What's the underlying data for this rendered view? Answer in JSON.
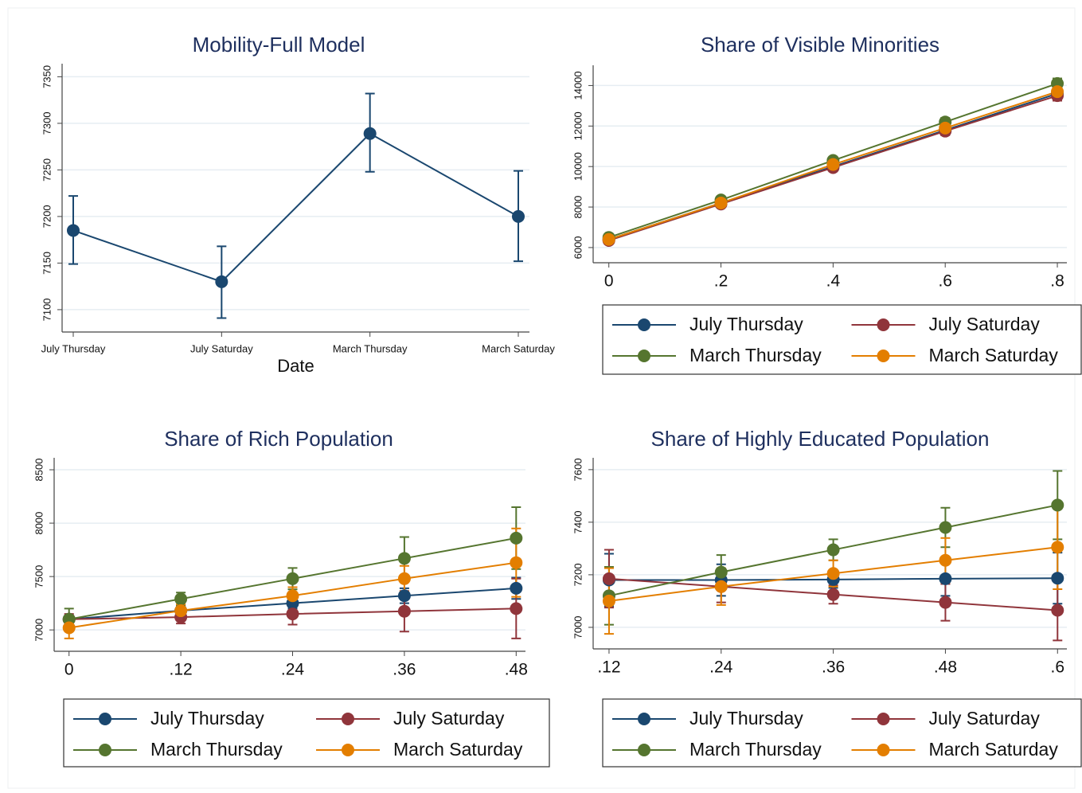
{
  "chart_data": [
    {
      "type": "line",
      "title": "Mobility-Full Model",
      "xlabel": "Date",
      "categories": [
        "July Thursday",
        "July Saturday",
        "March Thursday",
        "March Saturday"
      ],
      "ylim": [
        7076,
        7364
      ],
      "yticks": [
        7100,
        7150,
        7200,
        7250,
        7300,
        7350
      ],
      "grid": true,
      "series": [
        {
          "color": "#1a476f",
          "values": [
            7185,
            7130,
            7289,
            7200
          ],
          "ci_low": [
            7149,
            7091,
            7248,
            7152
          ],
          "ci_high": [
            7222,
            7168,
            7332,
            7249
          ]
        }
      ]
    },
    {
      "type": "line",
      "title": "Share of Visible Minorities",
      "x": [
        0,
        0.2,
        0.4,
        0.6,
        0.8
      ],
      "xlim": [
        -0.028,
        0.817
      ],
      "xticks": [
        0,
        {
          "value": 0.2,
          "label": ".2"
        },
        {
          "value": 0.4,
          "label": ".4"
        },
        {
          "value": 0.6,
          "label": ".6"
        },
        {
          "value": 0.8,
          "label": ".8"
        }
      ],
      "ylim": [
        5250,
        15000
      ],
      "yticks": [
        6000,
        8000,
        10000,
        12000,
        14000
      ],
      "grid": true,
      "legend": "bottom",
      "series": [
        {
          "name": "July Thursday",
          "color": "#1a476f",
          "values": [
            6400,
            8200,
            10000,
            11800,
            13600
          ],
          "ci_low": [
            6300,
            8080,
            9850,
            11600,
            13350
          ],
          "ci_high": [
            6500,
            8320,
            10150,
            12000,
            13850
          ]
        },
        {
          "name": "July Saturday",
          "color": "#90353b",
          "values": [
            6350,
            8150,
            9950,
            11750,
            13500
          ],
          "ci_low": [
            6250,
            8030,
            9800,
            11550,
            13250
          ],
          "ci_high": [
            6450,
            8270,
            10100,
            11950,
            13750
          ]
        },
        {
          "name": "March Thursday",
          "color": "#55752f",
          "values": [
            6500,
            8350,
            10300,
            12200,
            14100
          ],
          "ci_low": [
            6400,
            8230,
            10150,
            12000,
            13850
          ],
          "ci_high": [
            6600,
            8470,
            10450,
            12400,
            14350
          ]
        },
        {
          "name": "March Saturday",
          "color": "#e37e00",
          "values": [
            6400,
            8200,
            10100,
            11900,
            13700
          ],
          "ci_low": [
            6300,
            8080,
            9950,
            11700,
            13450
          ],
          "ci_high": [
            6500,
            8320,
            10250,
            12100,
            13950
          ]
        }
      ]
    },
    {
      "type": "line",
      "title": "Share of Rich Population",
      "x": [
        0,
        0.12,
        0.24,
        0.36,
        0.48
      ],
      "xlim": [
        -0.016,
        0.49
      ],
      "xticks": [
        0,
        {
          "value": 0.12,
          "label": ".12"
        },
        {
          "value": 0.24,
          "label": ".24"
        },
        {
          "value": 0.36,
          "label": ".36"
        },
        {
          "value": 0.48,
          "label": ".48"
        }
      ],
      "ylim": [
        6800,
        8612
      ],
      "yticks": [
        7000,
        7500,
        8000,
        8500
      ],
      "grid": true,
      "legend": "bottom",
      "series": [
        {
          "name": "July Thursday",
          "color": "#1a476f",
          "values": [
            7100,
            7180,
            7250,
            7320,
            7390
          ],
          "ci_low": [
            7070,
            7140,
            7200,
            7250,
            7290
          ],
          "ci_high": [
            7130,
            7220,
            7300,
            7390,
            7490
          ]
        },
        {
          "name": "July Saturday",
          "color": "#90353b",
          "values": [
            7100,
            7120,
            7150,
            7175,
            7200
          ],
          "ci_low": [
            7050,
            7060,
            7050,
            6985,
            6920
          ],
          "ci_high": [
            7150,
            7180,
            7250,
            7365,
            7480
          ]
        },
        {
          "name": "March Thursday",
          "color": "#55752f",
          "values": [
            7100,
            7290,
            7480,
            7670,
            7860
          ],
          "ci_low": [
            7000,
            7230,
            7380,
            7470,
            7570
          ],
          "ci_high": [
            7200,
            7350,
            7580,
            7870,
            8150
          ]
        },
        {
          "name": "March Saturday",
          "color": "#e37e00",
          "values": [
            7020,
            7180,
            7320,
            7480,
            7630
          ],
          "ci_low": [
            6920,
            7120,
            7240,
            7360,
            7310
          ],
          "ci_high": [
            7120,
            7240,
            7400,
            7600,
            7950
          ]
        }
      ]
    },
    {
      "type": "line",
      "title": "Share of Highly Educated Population",
      "x": [
        0.12,
        0.24,
        0.36,
        0.48,
        0.6
      ],
      "xlim": [
        0.103,
        0.61
      ],
      "xticks": [
        {
          "value": 0.12,
          "label": ".12"
        },
        {
          "value": 0.24,
          "label": ".24"
        },
        {
          "value": 0.36,
          "label": ".36"
        },
        {
          "value": 0.48,
          "label": ".48"
        },
        {
          "value": 0.6,
          "label": ".6"
        }
      ],
      "ylim": [
        6918,
        7645
      ],
      "yticks": [
        7000,
        7200,
        7400,
        7600
      ],
      "grid": true,
      "legend": "bottom",
      "series": [
        {
          "name": "July Thursday",
          "color": "#1a476f",
          "values": [
            7180,
            7180,
            7182,
            7185,
            7187
          ],
          "ci_low": [
            7080,
            7120,
            7150,
            7120,
            7090
          ],
          "ci_high": [
            7280,
            7240,
            7214,
            7250,
            7284
          ]
        },
        {
          "name": "July Saturday",
          "color": "#90353b",
          "values": [
            7185,
            7155,
            7125,
            7095,
            7065
          ],
          "ci_low": [
            7075,
            7095,
            7090,
            7025,
            6950
          ],
          "ci_high": [
            7295,
            7215,
            7160,
            7165,
            7180
          ]
        },
        {
          "name": "March Thursday",
          "color": "#55752f",
          "values": [
            7120,
            7210,
            7295,
            7380,
            7465
          ],
          "ci_low": [
            7010,
            7145,
            7255,
            7305,
            7335
          ],
          "ci_high": [
            7230,
            7275,
            7335,
            7455,
            7595
          ]
        },
        {
          "name": "March Saturday",
          "color": "#e37e00",
          "values": [
            7100,
            7155,
            7205,
            7255,
            7305
          ],
          "ci_low": [
            6975,
            7085,
            7155,
            7170,
            7145
          ],
          "ci_high": [
            7225,
            7225,
            7255,
            7340,
            7465
          ]
        }
      ]
    }
  ]
}
